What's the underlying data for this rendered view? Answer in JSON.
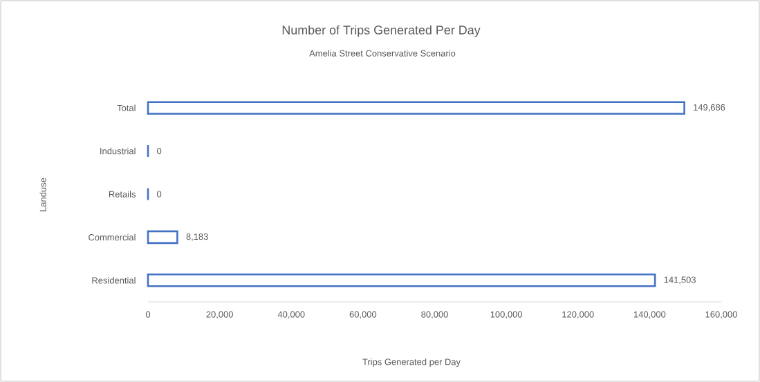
{
  "chart_data": {
    "type": "bar",
    "orientation": "horizontal",
    "title": "Number of Trips Generated Per Day",
    "subtitle": "Amelia Street Conservative Scenario",
    "xlabel": "Trips Generated per Day",
    "ylabel": "Landuse",
    "categories": [
      "Total",
      "Industrial",
      "Retails",
      "Commercial",
      "Residential"
    ],
    "values": [
      149686,
      0,
      0,
      8183,
      141503
    ],
    "value_labels": [
      "149,686",
      "0",
      "0",
      "8,183",
      "141,503"
    ],
    "color": "#4472c4",
    "xlim": [
      0,
      160000
    ],
    "xticks": [
      0,
      {
        "value": 20000,
        "label": "20,000"
      },
      {
        "value": 40000,
        "label": "40,000"
      },
      {
        "value": 60000,
        "label": "60,000"
      },
      {
        "value": 80000,
        "label": "80,000"
      },
      {
        "value": 100000,
        "label": "100,000"
      },
      {
        "value": 120000,
        "label": "120,000"
      },
      {
        "value": 140000,
        "label": "140,000"
      },
      {
        "value": 160000,
        "label": "160,000"
      }
    ],
    "grid": false
  }
}
